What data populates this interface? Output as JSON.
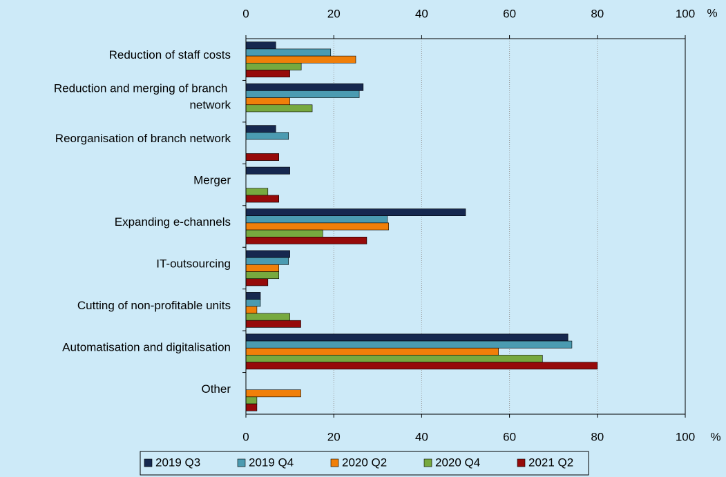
{
  "chart_data": {
    "type": "hbar",
    "axis_unit": "%",
    "categories": [
      "Reduction of staff costs",
      "Reduction and merging of branch network",
      "Reorganisation of branch network",
      "Merger",
      "Expanding e-channels",
      "IT-outsourcing",
      "Cutting of non-profitable units",
      "Automatisation and digitalisation",
      "Other"
    ],
    "series": [
      {
        "name": "2019 Q3",
        "color": "#16284f",
        "values": [
          6.8,
          26.7,
          6.8,
          10,
          50,
          10,
          3.3,
          73.3,
          null
        ]
      },
      {
        "name": "2019 Q4",
        "color": "#4b9bb1",
        "values": [
          19.3,
          25.8,
          9.7,
          null,
          32.2,
          9.7,
          3.3,
          74.2,
          null
        ]
      },
      {
        "name": "2020 Q2",
        "color": "#f07f09",
        "values": [
          25,
          10,
          null,
          null,
          32.5,
          7.5,
          2.5,
          57.5,
          12.5
        ]
      },
      {
        "name": "2020 Q4",
        "color": "#77a93f",
        "values": [
          12.6,
          15.1,
          null,
          5,
          17.5,
          7.5,
          10,
          67.5,
          2.5
        ]
      },
      {
        "name": "2021 Q2",
        "color": "#960a0a",
        "values": [
          10,
          null,
          7.5,
          7.5,
          27.5,
          5,
          12.5,
          80,
          2.5
        ]
      }
    ],
    "xlim": [
      0,
      100
    ],
    "xticks": [
      0,
      20,
      40,
      60,
      80,
      100
    ],
    "grid": true,
    "legend": "bottom"
  }
}
